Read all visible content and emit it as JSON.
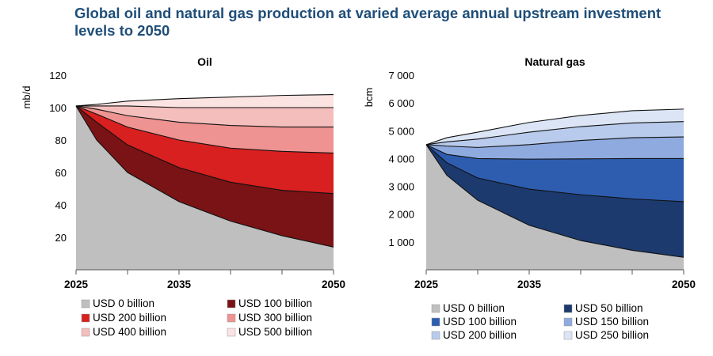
{
  "title": "Global oil and natural gas production at varied average annual upstream investment levels to 2050",
  "chart_data": [
    {
      "type": "area",
      "title": "Oil",
      "ylabel": "mb/d",
      "xlabel": "",
      "x_ticks": [
        "2025",
        "2035",
        "2050"
      ],
      "xlim": [
        2025,
        2050
      ],
      "ylim": [
        0,
        120
      ],
      "y_ticks": [
        "20",
        "40",
        "60",
        "80",
        "100",
        "120"
      ],
      "legend": "bottom",
      "x": [
        2025,
        2027,
        2030,
        2035,
        2040,
        2045,
        2050
      ],
      "series": [
        {
          "name": "USD 0 billion",
          "color": "#BFBFBF",
          "values": [
            101,
            80,
            60,
            42,
            30,
            21,
            14
          ]
        },
        {
          "name": "USD 100 billion",
          "color": "#7A1315",
          "values": [
            101,
            91,
            77,
            63,
            54,
            49,
            47
          ]
        },
        {
          "name": "USD 200 billion",
          "color": "#D7201F",
          "values": [
            101,
            96,
            88,
            80,
            75,
            73,
            72
          ]
        },
        {
          "name": "USD 300 billion",
          "color": "#EE9391",
          "values": [
            101,
            99,
            95,
            91,
            89,
            88,
            88
          ]
        },
        {
          "name": "USD 400 billion",
          "color": "#F4BEBD",
          "values": [
            101,
            101,
            101,
            100,
            100,
            100,
            100
          ]
        },
        {
          "name": "USD 500 billion",
          "color": "#FBE3E2",
          "values": [
            101,
            102,
            104,
            105.5,
            106.5,
            107.5,
            108
          ]
        }
      ]
    },
    {
      "type": "area",
      "title": "Natural gas",
      "ylabel": "bcm",
      "xlabel": "",
      "x_ticks": [
        "2025",
        "2035",
        "2050"
      ],
      "xlim": [
        2025,
        2050
      ],
      "ylim": [
        0,
        7000
      ],
      "y_ticks": [
        "1 000",
        "2 000",
        "3 000",
        "4 000",
        "5 000",
        "6 000",
        "7 000"
      ],
      "legend": "bottom",
      "x": [
        2025,
        2027,
        2030,
        2035,
        2040,
        2045,
        2050
      ],
      "series": [
        {
          "name": "USD 0 billion",
          "color": "#BFBFBF",
          "values": [
            4500,
            3400,
            2500,
            1600,
            1050,
            700,
            450
          ]
        },
        {
          "name": "USD 50 billion",
          "color": "#1C3A6E",
          "values": [
            4500,
            3850,
            3300,
            2900,
            2700,
            2550,
            2450
          ]
        },
        {
          "name": "USD 100 billion",
          "color": "#2E5DB0",
          "values": [
            4500,
            4150,
            4000,
            3980,
            3990,
            4000,
            4000
          ]
        },
        {
          "name": "USD 150 billion",
          "color": "#8EAADF",
          "values": [
            4500,
            4450,
            4400,
            4500,
            4650,
            4750,
            4780
          ]
        },
        {
          "name": "USD 200 billion",
          "color": "#B8CBEC",
          "values": [
            4500,
            4600,
            4700,
            4950,
            5150,
            5280,
            5330
          ]
        },
        {
          "name": "USD 250 billion",
          "color": "#DCE5F5",
          "values": [
            4500,
            4750,
            4950,
            5300,
            5550,
            5720,
            5780
          ]
        }
      ]
    }
  ]
}
